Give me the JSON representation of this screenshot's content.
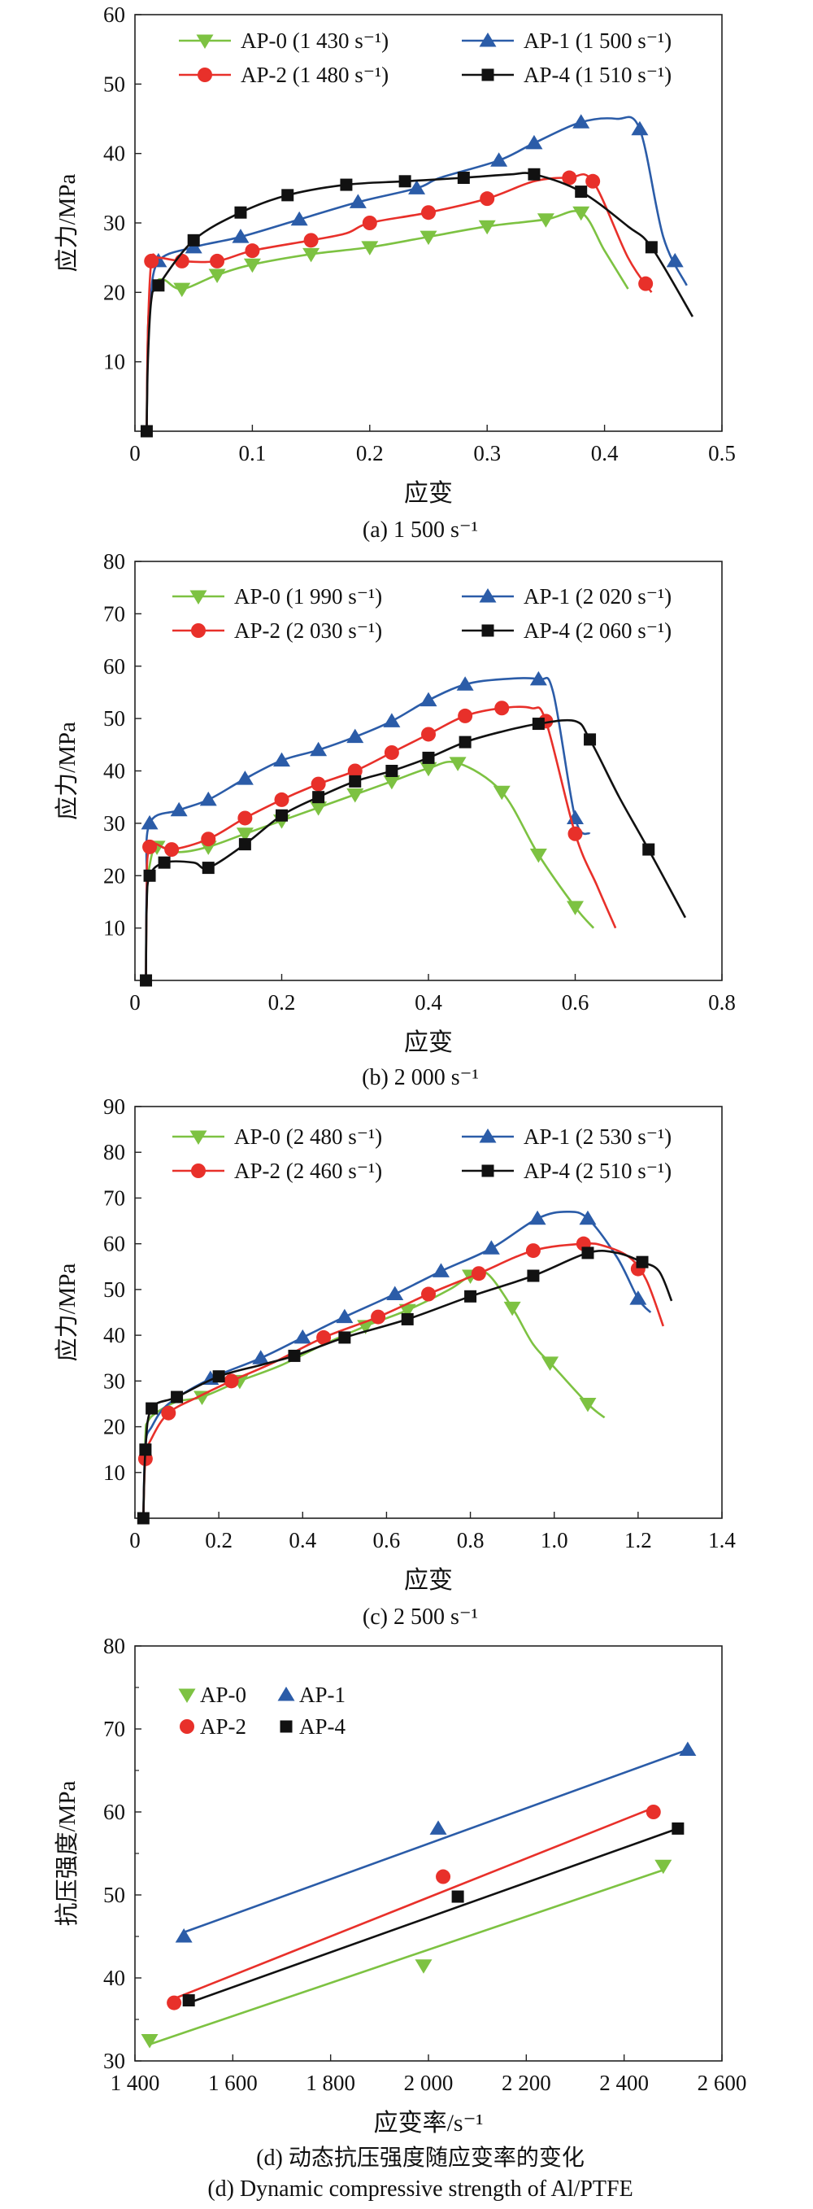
{
  "chart_data": [
    {
      "type": "line",
      "caption": "(a) 1 500 s⁻¹",
      "xlabel": "应变",
      "ylabel": "应力/MPa",
      "xlim": [
        0,
        0.5
      ],
      "ylim": [
        0,
        60
      ],
      "xticks": [
        0,
        0.1,
        0.2,
        0.3,
        0.4,
        0.5
      ],
      "xtick_labels": [
        "0",
        "0.1",
        "0.2",
        "0.3",
        "0.4",
        "0.5"
      ],
      "yticks": [
        10,
        20,
        30,
        40,
        50,
        60
      ],
      "ytick_labels": [
        "10",
        "20",
        "30",
        "40",
        "50",
        "60"
      ],
      "grid": false,
      "legend_position": "top",
      "series": [
        {
          "name": "AP-0 (1 430 s⁻¹)",
          "color": "#7dc242",
          "marker": "triangle-down",
          "x": [
            0.01,
            0.011,
            0.013,
            0.018,
            0.025,
            0.04,
            0.07,
            0.1,
            0.15,
            0.2,
            0.25,
            0.3,
            0.35,
            0.38,
            0.4,
            0.42
          ],
          "y": [
            0,
            14,
            19,
            21.5,
            21.8,
            20.5,
            22.5,
            24,
            25.5,
            26.5,
            28,
            29.5,
            30.5,
            31.5,
            26,
            20.5
          ],
          "marker_x": [
            0.04,
            0.07,
            0.1,
            0.15,
            0.2,
            0.25,
            0.3,
            0.35,
            0.38
          ]
        },
        {
          "name": "AP-1 (1 500 s⁻¹)",
          "color": "#2b5ca8",
          "marker": "triangle-up",
          "x": [
            0.01,
            0.011,
            0.013,
            0.02,
            0.05,
            0.09,
            0.14,
            0.19,
            0.24,
            0.26,
            0.31,
            0.34,
            0.38,
            0.41,
            0.43,
            0.45,
            0.47
          ],
          "y": [
            0,
            14,
            18.5,
            24.5,
            26.5,
            28,
            30.5,
            33,
            35,
            36.5,
            39,
            41.5,
            44.5,
            45,
            43.5,
            28,
            21
          ],
          "marker_x": [
            0.02,
            0.05,
            0.09,
            0.14,
            0.19,
            0.24,
            0.31,
            0.34,
            0.38,
            0.43,
            0.46
          ]
        },
        {
          "name": "AP-2 (1 480 s⁻¹)",
          "color": "#e8302a",
          "marker": "circle",
          "x": [
            0.01,
            0.011,
            0.014,
            0.02,
            0.04,
            0.07,
            0.1,
            0.15,
            0.18,
            0.2,
            0.25,
            0.3,
            0.34,
            0.37,
            0.39,
            0.42,
            0.44
          ],
          "y": [
            0,
            14,
            24.5,
            25,
            24.5,
            24.5,
            26,
            27.5,
            28.5,
            30,
            31.5,
            33.5,
            36,
            36.5,
            36,
            25,
            20
          ],
          "marker_x": [
            0.014,
            0.04,
            0.07,
            0.1,
            0.15,
            0.2,
            0.25,
            0.3,
            0.37,
            0.39,
            0.435
          ]
        },
        {
          "name": "AP-4 (1 510 s⁻¹)",
          "color": "#111111",
          "marker": "square",
          "x": [
            0.01,
            0.011,
            0.014,
            0.02,
            0.05,
            0.09,
            0.13,
            0.18,
            0.23,
            0.28,
            0.32,
            0.34,
            0.38,
            0.42,
            0.44,
            0.475
          ],
          "y": [
            0,
            10,
            19,
            21,
            27.5,
            31.5,
            34,
            35.5,
            36,
            36.5,
            37,
            37,
            34.5,
            29.5,
            26.5,
            16.5
          ],
          "marker_x": [
            0.01,
            0.02,
            0.05,
            0.09,
            0.13,
            0.18,
            0.23,
            0.28,
            0.34,
            0.38,
            0.44
          ]
        }
      ]
    },
    {
      "type": "line",
      "caption": "(b) 2 000 s⁻¹",
      "xlabel": "应变",
      "ylabel": "应力/MPa",
      "xlim": [
        0,
        0.8
      ],
      "ylim": [
        0,
        80
      ],
      "xticks": [
        0,
        0.2,
        0.4,
        0.6,
        0.8
      ],
      "xtick_labels": [
        "0",
        "0.2",
        "0.4",
        "0.6",
        "0.8"
      ],
      "yticks": [
        10,
        20,
        30,
        40,
        50,
        60,
        70,
        80
      ],
      "ytick_labels": [
        "10",
        "20",
        "30",
        "40",
        "50",
        "60",
        "70",
        "80"
      ],
      "grid": false,
      "legend_position": "top",
      "series": [
        {
          "name": "AP-0 (1 990 s⁻¹)",
          "color": "#7dc242",
          "marker": "triangle-down",
          "x": [
            0.015,
            0.016,
            0.02,
            0.03,
            0.06,
            0.1,
            0.15,
            0.2,
            0.25,
            0.3,
            0.35,
            0.4,
            0.44,
            0.5,
            0.55,
            0.6,
            0.625
          ],
          "y": [
            0,
            15,
            22,
            25.5,
            24.5,
            25.5,
            28,
            30.5,
            33,
            35.5,
            38,
            40.5,
            41.5,
            36,
            24,
            14,
            10
          ],
          "marker_x": [
            0.03,
            0.1,
            0.15,
            0.2,
            0.25,
            0.3,
            0.35,
            0.4,
            0.44,
            0.5,
            0.55,
            0.6
          ]
        },
        {
          "name": "AP-1 (2 020 s⁻¹)",
          "color": "#2b5ca8",
          "marker": "triangle-up",
          "x": [
            0.015,
            0.016,
            0.02,
            0.06,
            0.1,
            0.15,
            0.2,
            0.25,
            0.3,
            0.35,
            0.4,
            0.45,
            0.5,
            0.55,
            0.57,
            0.6,
            0.62
          ],
          "y": [
            0,
            18,
            30,
            32.5,
            34.5,
            38.5,
            42,
            44,
            46.5,
            49.5,
            53.5,
            56.5,
            57.5,
            57.5,
            55,
            31,
            28
          ],
          "marker_x": [
            0.02,
            0.06,
            0.1,
            0.15,
            0.2,
            0.25,
            0.3,
            0.35,
            0.4,
            0.45,
            0.55,
            0.6
          ]
        },
        {
          "name": "AP-2 (2 030 s⁻¹)",
          "color": "#e8302a",
          "marker": "circle",
          "x": [
            0.015,
            0.016,
            0.02,
            0.05,
            0.1,
            0.15,
            0.2,
            0.25,
            0.3,
            0.35,
            0.4,
            0.45,
            0.5,
            0.54,
            0.56,
            0.6,
            0.63,
            0.655
          ],
          "y": [
            0,
            14,
            25.5,
            25,
            27,
            31,
            34.5,
            37.5,
            40,
            43.5,
            47,
            50.5,
            52,
            52,
            49.5,
            28,
            18,
            10
          ],
          "marker_x": [
            0.02,
            0.05,
            0.1,
            0.15,
            0.2,
            0.25,
            0.3,
            0.35,
            0.4,
            0.45,
            0.5,
            0.56,
            0.6
          ]
        },
        {
          "name": "AP-4 (2 060 s⁻¹)",
          "color": "#111111",
          "marker": "square",
          "x": [
            0.015,
            0.016,
            0.02,
            0.04,
            0.08,
            0.1,
            0.15,
            0.2,
            0.25,
            0.3,
            0.35,
            0.4,
            0.45,
            0.5,
            0.55,
            0.6,
            0.62,
            0.66,
            0.7,
            0.75
          ],
          "y": [
            0,
            14,
            20,
            22.5,
            22.5,
            21.5,
            26,
            31.5,
            35,
            38,
            40,
            42.5,
            45.5,
            47.5,
            49,
            49.5,
            46,
            35,
            25,
            12
          ],
          "marker_x": [
            0.015,
            0.02,
            0.04,
            0.1,
            0.15,
            0.2,
            0.25,
            0.3,
            0.35,
            0.4,
            0.45,
            0.55,
            0.62,
            0.7
          ]
        }
      ]
    },
    {
      "type": "line",
      "caption": "(c) 2 500 s⁻¹",
      "xlabel": "应变",
      "ylabel": "应力/MPa",
      "xlim": [
        0,
        1.4
      ],
      "ylim": [
        0,
        90
      ],
      "xticks": [
        0,
        0.2,
        0.4,
        0.6,
        0.8,
        1.0,
        1.2,
        1.4
      ],
      "xtick_labels": [
        "0",
        "0.2",
        "0.4",
        "0.6",
        "0.8",
        "1.0",
        "1.2",
        "1.4"
      ],
      "yticks": [
        10,
        20,
        30,
        40,
        50,
        60,
        70,
        80,
        90
      ],
      "ytick_labels": [
        "10",
        "20",
        "30",
        "40",
        "50",
        "60",
        "70",
        "80",
        "90"
      ],
      "grid": false,
      "legend_position": "top",
      "series": [
        {
          "name": "AP-0 (2 480 s⁻¹)",
          "color": "#7dc242",
          "marker": "triangle-down",
          "x": [
            0.02,
            0.025,
            0.03,
            0.05,
            0.1,
            0.16,
            0.25,
            0.35,
            0.45,
            0.55,
            0.65,
            0.75,
            0.8,
            0.84,
            0.9,
            0.95,
            1.0,
            1.08,
            1.12
          ],
          "y": [
            0,
            18,
            21,
            23,
            25.5,
            26.5,
            30,
            33.5,
            38,
            42,
            45.5,
            50,
            53,
            53.5,
            46,
            38,
            33,
            25,
            22
          ],
          "marker_x": [
            0.16,
            0.25,
            0.55,
            0.65,
            0.8,
            0.9,
            0.99,
            1.08
          ]
        },
        {
          "name": "AP-1 (2 530 s⁻¹)",
          "color": "#2b5ca8",
          "marker": "triangle-up",
          "x": [
            0.02,
            0.025,
            0.04,
            0.08,
            0.18,
            0.3,
            0.4,
            0.5,
            0.62,
            0.73,
            0.85,
            0.96,
            1.03,
            1.08,
            1.15,
            1.2,
            1.23
          ],
          "y": [
            0,
            16,
            20,
            25,
            30.5,
            35,
            39.5,
            44,
            49,
            54,
            59,
            65.5,
            67,
            65.5,
            57,
            48,
            45
          ],
          "marker_x": [
            0.18,
            0.3,
            0.4,
            0.5,
            0.62,
            0.73,
            0.85,
            0.96,
            1.08,
            1.2
          ]
        },
        {
          "name": "AP-2 (2 460 s⁻¹)",
          "color": "#e8302a",
          "marker": "circle",
          "x": [
            0.02,
            0.025,
            0.04,
            0.08,
            0.15,
            0.23,
            0.33,
            0.45,
            0.58,
            0.7,
            0.82,
            0.95,
            1.07,
            1.12,
            1.18,
            1.22,
            1.26
          ],
          "y": [
            0,
            13,
            17.5,
            23,
            26.5,
            30,
            34,
            39.5,
            44,
            49,
            53.5,
            58.5,
            60,
            59.5,
            57,
            52,
            42
          ],
          "marker_x": [
            0.025,
            0.08,
            0.23,
            0.45,
            0.58,
            0.7,
            0.82,
            0.95,
            1.07,
            1.2
          ]
        },
        {
          "name": "AP-4 (2 510 s⁻¹)",
          "color": "#111111",
          "marker": "square",
          "x": [
            0.02,
            0.025,
            0.04,
            0.1,
            0.2,
            0.3,
            0.38,
            0.5,
            0.65,
            0.8,
            0.95,
            1.08,
            1.15,
            1.21,
            1.25,
            1.28
          ],
          "y": [
            0,
            15,
            24,
            26.5,
            31,
            33.5,
            35.5,
            39.5,
            43.5,
            48.5,
            53,
            58,
            58,
            56,
            54,
            47.5
          ],
          "marker_x": [
            0.02,
            0.025,
            0.04,
            0.1,
            0.2,
            0.38,
            0.5,
            0.65,
            0.8,
            0.95,
            1.08,
            1.21
          ]
        }
      ]
    },
    {
      "type": "scatter",
      "caption": "(d) 动态抗压强度随应变率的变化",
      "caption_en": "(d) Dynamic compressive strength of Al/PTFE",
      "xlabel": "应变率/s⁻¹",
      "ylabel": "抗压强度/MPa",
      "xlim": [
        1400,
        2600
      ],
      "ylim": [
        30,
        80
      ],
      "xticks": [
        1400,
        1600,
        1800,
        2000,
        2200,
        2400,
        2600
      ],
      "xtick_labels": [
        "1 400",
        "1 600",
        "1 800",
        "2 000",
        "2 200",
        "2 400",
        "2 600"
      ],
      "yticks": [
        30,
        40,
        50,
        60,
        70,
        80
      ],
      "ytick_labels": [
        "30",
        "40",
        "50",
        "60",
        "70",
        "80"
      ],
      "grid": false,
      "legend_position": "top-left",
      "series": [
        {
          "name": "AP-0",
          "color": "#7dc242",
          "marker": "triangle-down",
          "x": [
            1430,
            1990,
            2480
          ],
          "y": [
            32.5,
            41.5,
            53.5
          ],
          "fit": [
            [
              1430,
              32.0
            ],
            [
              2480,
              53.0
            ]
          ]
        },
        {
          "name": "AP-1",
          "color": "#2b5ca8",
          "marker": "triangle-up",
          "x": [
            1500,
            2020,
            2530
          ],
          "y": [
            45.0,
            58.0,
            67.5
          ],
          "fit": [
            [
              1500,
              45.5
            ],
            [
              2530,
              67.5
            ]
          ]
        },
        {
          "name": "AP-2",
          "color": "#e8302a",
          "marker": "circle",
          "x": [
            1480,
            2030,
            2460
          ],
          "y": [
            37.0,
            52.2,
            60.0
          ],
          "fit": [
            [
              1480,
              37.5
            ],
            [
              2460,
              60.5
            ]
          ]
        },
        {
          "name": "AP-4",
          "color": "#111111",
          "marker": "square",
          "x": [
            1510,
            2060,
            2510
          ],
          "y": [
            37.3,
            49.8,
            58.0
          ],
          "fit": [
            [
              1510,
              37.0
            ],
            [
              2510,
              58.0
            ]
          ]
        }
      ]
    }
  ]
}
